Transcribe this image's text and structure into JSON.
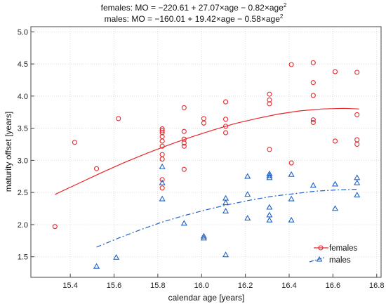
{
  "chart_data": {
    "type": "scatter",
    "title_lines": [
      {
        "base": "females: MO = −220.61 + 27.07×age − 0.82×age",
        "sup": "2"
      },
      {
        "base": "males: MO = −160.01 + 19.42×age − 0.58×age",
        "sup": "2"
      }
    ],
    "xlabel": "calendar age [years]",
    "ylabel": "maturity offset [years]",
    "xlim": [
      15.22,
      16.82
    ],
    "ylim": [
      1.18,
      5.08
    ],
    "xticks": [
      "15.4",
      "15.6",
      "15.8",
      "16.0",
      "16.2",
      "16.4",
      "16.6",
      "16.8"
    ],
    "yticks": [
      "1.5",
      "2.0",
      "2.5",
      "3.0",
      "3.5",
      "4.0",
      "4.5",
      "5.0"
    ],
    "grid": true,
    "legend_position": "bottom-right",
    "series": [
      {
        "name": "females",
        "marker": "circle",
        "line_style": "solid",
        "color": "#e8262a",
        "fit": {
          "x": [
            15.33,
            15.45,
            15.55,
            15.65,
            15.75,
            15.85,
            15.95,
            16.05,
            16.15,
            16.25,
            16.35,
            16.45,
            16.55,
            16.65,
            16.72
          ],
          "y": [
            2.47,
            2.66,
            2.82,
            2.97,
            3.11,
            3.24,
            3.36,
            3.47,
            3.57,
            3.65,
            3.72,
            3.77,
            3.8,
            3.81,
            3.8
          ]
        },
        "points": [
          [
            15.33,
            1.97
          ],
          [
            15.42,
            3.28
          ],
          [
            15.52,
            2.87
          ],
          [
            15.62,
            3.65
          ],
          [
            15.82,
            3.49
          ],
          [
            15.82,
            3.46
          ],
          [
            15.82,
            3.43
          ],
          [
            15.82,
            3.37
          ],
          [
            15.82,
            3.3
          ],
          [
            15.82,
            3.22
          ],
          [
            15.82,
            3.09
          ],
          [
            15.82,
            3.02
          ],
          [
            15.82,
            2.7
          ],
          [
            15.82,
            2.57
          ],
          [
            15.92,
            3.82
          ],
          [
            15.92,
            3.45
          ],
          [
            15.92,
            3.33
          ],
          [
            15.92,
            3.27
          ],
          [
            15.92,
            3.22
          ],
          [
            15.92,
            2.86
          ],
          [
            16.01,
            3.65
          ],
          [
            16.01,
            3.58
          ],
          [
            16.11,
            3.91
          ],
          [
            16.11,
            3.64
          ],
          [
            16.11,
            3.53
          ],
          [
            16.11,
            3.43
          ],
          [
            16.31,
            4.03
          ],
          [
            16.31,
            3.94
          ],
          [
            16.31,
            3.88
          ],
          [
            16.31,
            3.17
          ],
          [
            16.41,
            4.49
          ],
          [
            16.41,
            2.96
          ],
          [
            16.51,
            4.52
          ],
          [
            16.51,
            4.21
          ],
          [
            16.51,
            4.01
          ],
          [
            16.51,
            3.63
          ],
          [
            16.51,
            3.59
          ],
          [
            16.61,
            4.38
          ],
          [
            16.61,
            3.3
          ],
          [
            16.71,
            4.37
          ],
          [
            16.71,
            3.71
          ],
          [
            16.71,
            3.32
          ],
          [
            16.71,
            3.25
          ]
        ]
      },
      {
        "name": "males",
        "marker": "triangle",
        "line_style": "dashdot",
        "color": "#1e62c8",
        "fit": {
          "x": [
            15.52,
            15.62,
            15.72,
            15.82,
            15.92,
            16.02,
            16.12,
            16.22,
            16.32,
            16.42,
            16.52,
            16.62,
            16.71
          ],
          "y": [
            1.65,
            1.79,
            1.92,
            2.04,
            2.14,
            2.23,
            2.31,
            2.38,
            2.44,
            2.48,
            2.52,
            2.54,
            2.55
          ]
        },
        "points": [
          [
            15.52,
            1.35
          ],
          [
            15.61,
            1.49
          ],
          [
            15.82,
            2.9
          ],
          [
            15.82,
            2.65
          ],
          [
            15.82,
            2.4
          ],
          [
            15.92,
            2.02
          ],
          [
            16.01,
            1.82
          ],
          [
            16.01,
            1.79
          ],
          [
            16.11,
            2.41
          ],
          [
            16.11,
            2.34
          ],
          [
            16.11,
            2.21
          ],
          [
            16.11,
            1.53
          ],
          [
            16.21,
            2.75
          ],
          [
            16.21,
            2.47
          ],
          [
            16.21,
            2.1
          ],
          [
            16.31,
            2.79
          ],
          [
            16.31,
            2.76
          ],
          [
            16.31,
            2.73
          ],
          [
            16.31,
            2.27
          ],
          [
            16.31,
            2.15
          ],
          [
            16.31,
            2.07
          ],
          [
            16.41,
            2.78
          ],
          [
            16.41,
            2.4
          ],
          [
            16.41,
            2.07
          ],
          [
            16.51,
            2.61
          ],
          [
            16.61,
            2.63
          ],
          [
            16.61,
            2.25
          ],
          [
            16.71,
            2.73
          ],
          [
            16.71,
            2.65
          ],
          [
            16.71,
            2.46
          ]
        ]
      }
    ]
  }
}
